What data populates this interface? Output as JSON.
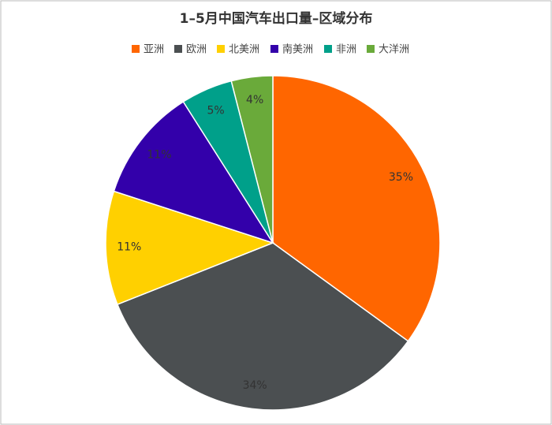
{
  "chart_data": {
    "type": "pie",
    "title": "1–5月中国汽车出口量–区域分布",
    "categories": [
      "亚洲",
      "欧洲",
      "北美洲",
      "南美洲",
      "非洲",
      "大洋洲"
    ],
    "values": [
      35,
      34,
      11,
      11,
      5,
      4
    ],
    "value_labels": [
      "35%",
      "34%",
      "11%",
      "11%",
      "5%",
      "4%"
    ],
    "colors": [
      "#ff6600",
      "#4b4f51",
      "#ffd000",
      "#3300aa",
      "#00a08a",
      "#6aaa3a"
    ]
  }
}
